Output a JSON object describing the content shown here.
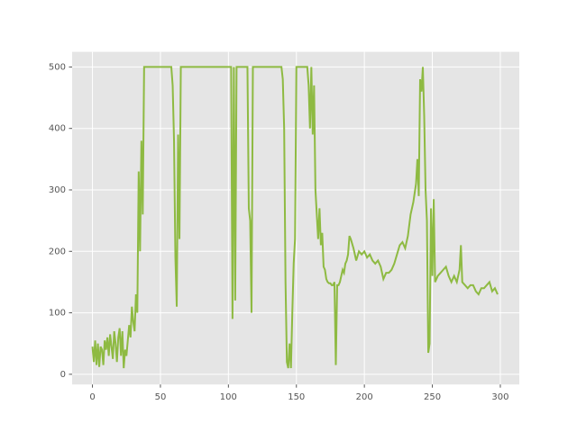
{
  "chart_data": {
    "type": "line",
    "x": [
      0,
      1,
      2,
      3,
      4,
      5,
      6,
      7,
      8,
      9,
      10,
      11,
      12,
      13,
      14,
      15,
      16,
      17,
      18,
      19,
      20,
      21,
      22,
      23,
      24,
      25,
      26,
      27,
      28,
      29,
      30,
      31,
      32,
      33,
      34,
      35,
      36,
      37,
      38,
      58,
      59,
      60,
      61,
      62,
      63,
      64,
      65,
      102,
      103,
      104,
      105,
      106,
      114,
      115,
      116,
      117,
      118,
      139,
      140,
      141,
      142,
      143,
      144,
      145,
      146,
      147,
      148,
      149,
      150,
      158,
      159,
      160,
      161,
      162,
      163,
      164,
      165,
      166,
      167,
      168,
      169,
      170,
      171,
      172,
      173,
      174,
      175,
      176,
      177,
      178,
      179,
      180,
      181,
      182,
      183,
      184,
      185,
      186,
      187,
      188,
      189,
      190,
      192,
      194,
      196,
      198,
      200,
      202,
      204,
      206,
      208,
      210,
      212,
      214,
      216,
      218,
      220,
      222,
      224,
      226,
      228,
      230,
      232,
      234,
      236,
      238,
      239,
      240,
      241,
      242,
      243,
      244,
      245,
      246,
      247,
      248,
      249,
      250,
      251,
      252,
      254,
      256,
      258,
      260,
      262,
      264,
      266,
      268,
      270,
      271,
      272,
      274,
      276,
      278,
      280,
      282,
      284,
      286,
      288,
      290,
      292,
      294,
      296,
      298
    ],
    "series": [
      {
        "color": "#8EBA42",
        "values": [
          45,
          20,
          55,
          15,
          50,
          12,
          45,
          40,
          15,
          55,
          40,
          60,
          30,
          65,
          45,
          25,
          70,
          50,
          20,
          60,
          75,
          30,
          70,
          10,
          40,
          30,
          55,
          80,
          60,
          110,
          85,
          70,
          130,
          100,
          330,
          200,
          380,
          260,
          500,
          500,
          470,
          380,
          190,
          110,
          390,
          220,
          500,
          500,
          90,
          500,
          120,
          500,
          500,
          270,
          250,
          100,
          500,
          500,
          480,
          400,
          150,
          20,
          10,
          50,
          10,
          100,
          180,
          220,
          500,
          500,
          470,
          400,
          500,
          390,
          470,
          300,
          260,
          220,
          270,
          210,
          230,
          175,
          170,
          155,
          150,
          148,
          148,
          145,
          145,
          150,
          15,
          145,
          145,
          150,
          160,
          170,
          165,
          180,
          185,
          195,
          225,
          220,
          205,
          185,
          200,
          195,
          200,
          190,
          195,
          185,
          180,
          185,
          175,
          155,
          165,
          165,
          170,
          180,
          195,
          210,
          215,
          205,
          225,
          260,
          280,
          310,
          350,
          290,
          480,
          460,
          500,
          420,
          300,
          250,
          35,
          50,
          270,
          160,
          285,
          150,
          160,
          165,
          170,
          175,
          160,
          150,
          160,
          150,
          170,
          210,
          150,
          145,
          140,
          145,
          145,
          135,
          130,
          140,
          140,
          145,
          150,
          135,
          140,
          130
        ]
      }
    ],
    "xlim": [
      -14.95,
      313.95
    ],
    "ylim": [
      -16.6,
      524.6
    ],
    "xticks": [
      0,
      50,
      100,
      150,
      200,
      250,
      300
    ],
    "yticks": [
      0,
      100,
      200,
      300,
      400,
      500
    ],
    "grid": true
  }
}
